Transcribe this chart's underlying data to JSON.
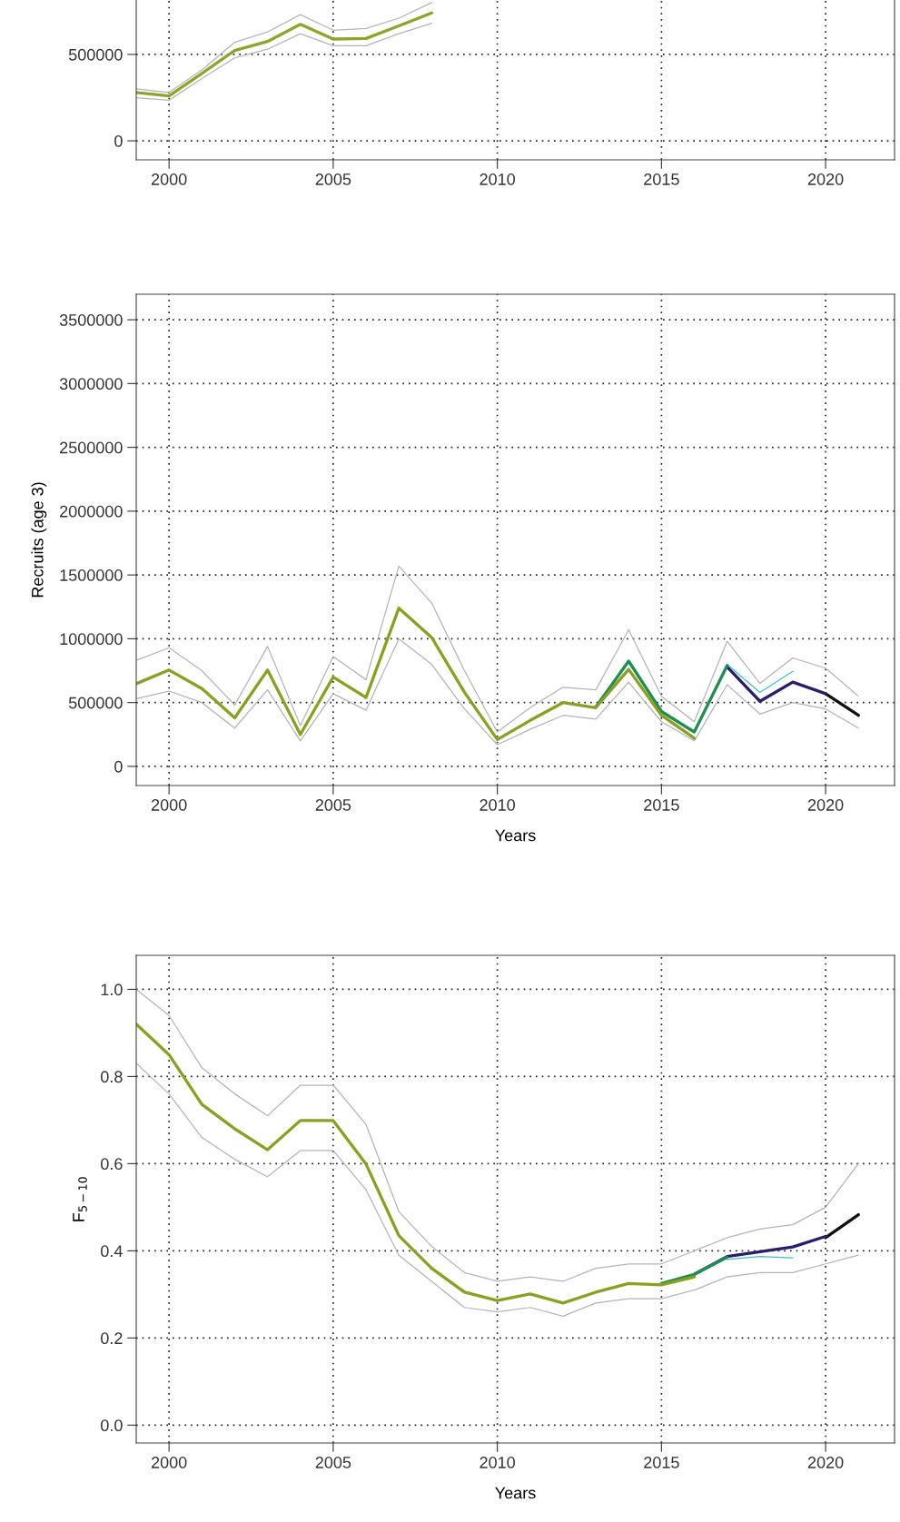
{
  "chart_data": [
    {
      "type": "line",
      "xlim": [
        1999,
        2022.1
      ],
      "ylim": [
        -110000,
        815000
      ],
      "xticks": [
        2000,
        2005,
        2010,
        2015,
        2020
      ],
      "yticks": [
        0,
        500000
      ],
      "grid": true,
      "line_style": "solid",
      "series": [
        {
          "color": "#b4b4b4",
          "x": [
            1999,
            2000,
            2001,
            2002,
            2003,
            2004,
            2005,
            2006,
            2007,
            2008
          ],
          "values": [
            250000,
            235000,
            360000,
            480000,
            530000,
            620000,
            550000,
            550000,
            620000,
            680000
          ]
        },
        {
          "color": "#b4b4b4",
          "x": [
            1999,
            2000,
            2001,
            2002,
            2003,
            2004,
            2005,
            2006,
            2007,
            2008
          ],
          "values": [
            300000,
            280000,
            410000,
            570000,
            630000,
            730000,
            640000,
            650000,
            710000,
            800000
          ]
        },
        {
          "color": "#8fa52a",
          "x": [
            1999,
            2000,
            2001,
            2002,
            2003,
            2004,
            2005,
            2006,
            2007,
            2008
          ],
          "values": [
            280000,
            260000,
            390000,
            523000,
            575000,
            674000,
            589000,
            592000,
            665000,
            740000
          ]
        }
      ]
    },
    {
      "type": "line",
      "xlabel": "Years",
      "ylabel": "Recruits (age 3)",
      "xlim": [
        1999,
        2022.1
      ],
      "ylim": [
        -150000,
        3700000
      ],
      "xticks": [
        2000,
        2005,
        2010,
        2015,
        2020
      ],
      "yticks": [
        0,
        500000,
        1000000,
        1500000,
        2000000,
        2500000,
        3000000,
        3500000
      ],
      "grid": true,
      "line_style": "solid",
      "series": [
        {
          "color": "#b4b4b4",
          "x": [
            1999,
            2000,
            2001,
            2002,
            2003,
            2004,
            2005,
            2006,
            2007,
            2008,
            2009,
            2010,
            2011,
            2012,
            2013,
            2014,
            2015,
            2016,
            2017,
            2018,
            2019,
            2020,
            2021
          ],
          "values": [
            530000,
            590000,
            500000,
            300000,
            600000,
            200000,
            570000,
            440000,
            1000000,
            800000,
            450000,
            170000,
            290000,
            400000,
            370000,
            660000,
            350000,
            200000,
            640000,
            410000,
            500000,
            450000,
            300000
          ]
        },
        {
          "color": "#b4b4b4",
          "x": [
            1999,
            2000,
            2001,
            2002,
            2003,
            2004,
            2005,
            2006,
            2007,
            2008,
            2009,
            2010,
            2011,
            2012,
            2013,
            2014,
            2015,
            2016,
            2017,
            2018,
            2019,
            2020,
            2021
          ],
          "values": [
            830000,
            930000,
            750000,
            480000,
            940000,
            320000,
            860000,
            680000,
            1570000,
            1280000,
            750000,
            270000,
            460000,
            620000,
            600000,
            1070000,
            550000,
            350000,
            980000,
            650000,
            850000,
            770000,
            550000
          ]
        },
        {
          "color": "#111111",
          "x": [
            2020,
            2021
          ],
          "values": [
            570000,
            400000
          ]
        },
        {
          "color": "#2b1d6b",
          "x": [
            2017,
            2018,
            2019,
            2020
          ],
          "values": [
            780000,
            510000,
            660000,
            570000
          ]
        },
        {
          "color": "#3cc0d0",
          "x": [
            2016,
            2017,
            2018,
            2019
          ],
          "values": [
            280000,
            800000,
            580000,
            745000
          ]
        },
        {
          "color": "#1f8f50",
          "x": [
            2013,
            2014,
            2015,
            2016,
            2017
          ],
          "values": [
            465000,
            825000,
            430000,
            270000,
            790000
          ]
        },
        {
          "color": "#8aa020",
          "x": [
            1999,
            2000,
            2001,
            2002,
            2003,
            2004,
            2005,
            2006,
            2007,
            2008,
            2009,
            2010,
            2011,
            2012,
            2013,
            2014,
            2015,
            2016
          ],
          "values": [
            648000,
            755000,
            610000,
            380000,
            755000,
            250000,
            700000,
            540000,
            1240000,
            1010000,
            580000,
            210000,
            360000,
            500000,
            460000,
            760000,
            400000,
            220000
          ]
        }
      ]
    },
    {
      "type": "line",
      "xlabel": "Years",
      "ylabel": "F$_{5−10}$",
      "xlim": [
        1999,
        2022.1
      ],
      "ylim": [
        -0.041,
        1.078
      ],
      "xticks": [
        2000,
        2005,
        2010,
        2015,
        2020
      ],
      "yticks": [
        {
          "value": 0,
          "label": "0.0"
        },
        0.2,
        0.4,
        0.6,
        0.8,
        {
          "value": 1,
          "label": "1.0"
        }
      ],
      "grid": true,
      "line_style": "solid",
      "series": [
        {
          "color": "#b4b4b4",
          "x": [
            1999,
            2000,
            2001,
            2002,
            2003,
            2004,
            2005,
            2006,
            2007,
            2008,
            2009,
            2010,
            2011,
            2012,
            2013,
            2014,
            2015,
            2016,
            2017,
            2018,
            2019,
            2020,
            2021
          ],
          "values": [
            0.83,
            0.76,
            0.66,
            0.61,
            0.57,
            0.63,
            0.63,
            0.54,
            0.39,
            0.33,
            0.27,
            0.26,
            0.27,
            0.25,
            0.28,
            0.29,
            0.29,
            0.31,
            0.34,
            0.35,
            0.35,
            0.37,
            0.39
          ]
        },
        {
          "color": "#b4b4b4",
          "x": [
            1999,
            2000,
            2001,
            2002,
            2003,
            2004,
            2005,
            2006,
            2007,
            2008,
            2009,
            2010,
            2011,
            2012,
            2013,
            2014,
            2015,
            2016,
            2017,
            2018,
            2019,
            2020,
            2021
          ],
          "values": [
            1.0,
            0.94,
            0.82,
            0.76,
            0.71,
            0.78,
            0.78,
            0.69,
            0.49,
            0.41,
            0.35,
            0.33,
            0.34,
            0.33,
            0.36,
            0.37,
            0.37,
            0.4,
            0.43,
            0.45,
            0.46,
            0.5,
            0.6
          ]
        },
        {
          "color": "#111111",
          "x": [
            2020,
            2021
          ],
          "values": [
            0.43,
            0.483
          ]
        },
        {
          "color": "#2b1d6b",
          "x": [
            2016,
            2017,
            2018,
            2019,
            2020
          ],
          "values": [
            0.346,
            0.387,
            0.398,
            0.409,
            0.433
          ]
        },
        {
          "color": "#3cc0d0",
          "x": [
            2017,
            2018,
            2019
          ],
          "values": [
            0.38,
            0.387,
            0.384
          ]
        },
        {
          "color": "#1f8f50",
          "x": [
            2015,
            2016,
            2017
          ],
          "values": [
            0.325,
            0.346,
            0.385
          ]
        },
        {
          "color": "#8aa020",
          "x": [
            1999,
            2000,
            2001,
            2002,
            2003,
            2004,
            2005,
            2006,
            2007,
            2008,
            2009,
            2010,
            2011,
            2012,
            2013,
            2014,
            2015,
            2016
          ],
          "values": [
            0.92,
            0.85,
            0.736,
            0.68,
            0.632,
            0.699,
            0.699,
            0.599,
            0.435,
            0.36,
            0.305,
            0.286,
            0.301,
            0.28,
            0.305,
            0.325,
            0.322,
            0.34
          ]
        }
      ]
    }
  ]
}
